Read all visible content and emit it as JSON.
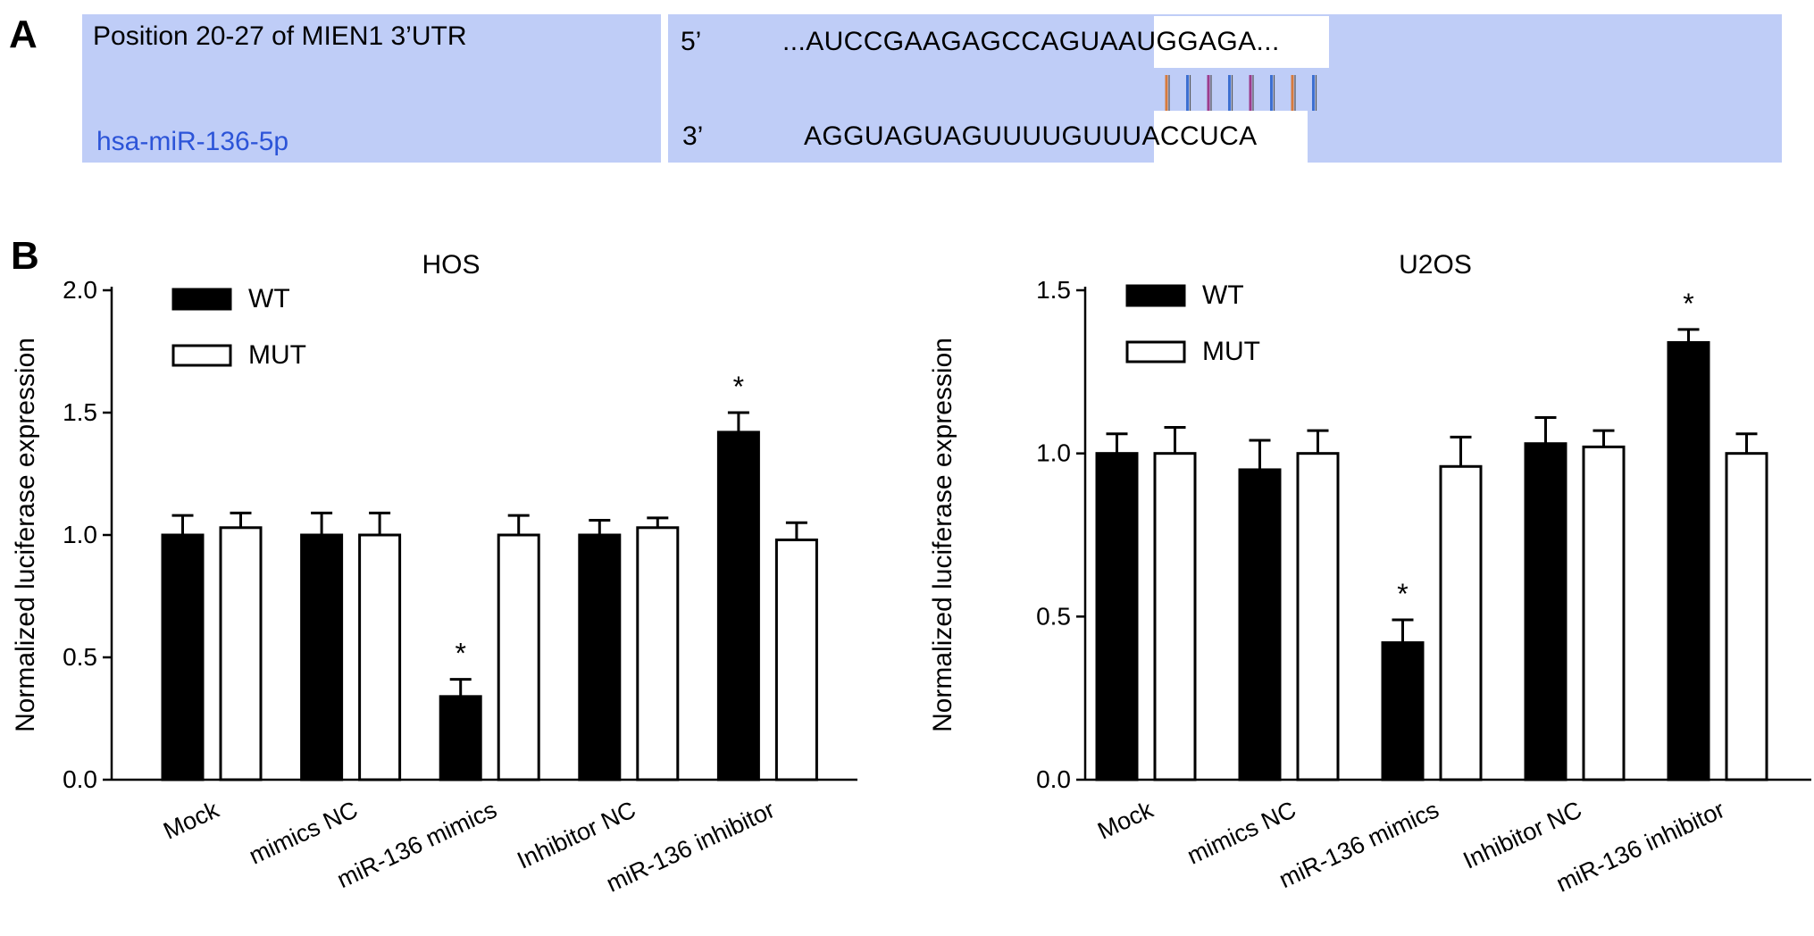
{
  "panel_a": {
    "letter": "A",
    "target_label": "Position 20-27 of MIEN1 3’UTR",
    "mirna_label": "hsa-miR-136-5p",
    "prime5": "5’",
    "prime3": "3’",
    "seq_top": "...AUCCGAAGAGCCAGUAAUGGAGA...",
    "seq_bottom": "AGGUAGUAGUUUUGUUUACCUCA",
    "pair_colors": [
      "#d77a3c",
      "#3c6fd1",
      "#9c3c8c",
      "#3c6fd1",
      "#9c3c8c",
      "#3c6fd1",
      "#d77a3c",
      "#3c6fd1"
    ]
  },
  "panel_b": {
    "letter": "B"
  },
  "chart_data": [
    {
      "type": "bar",
      "title": "HOS",
      "ylabel": "Normalized luciferase expression",
      "xlabel": "",
      "categories": [
        "Mock",
        "mimics NC",
        "miR-136 mimics",
        "Inhibitor NC",
        "miR-136 inhibitor"
      ],
      "ylim": [
        0,
        2.0
      ],
      "yticks": [
        "0.0",
        "0.5",
        "1.0",
        "1.5",
        "2.0"
      ],
      "series": [
        {
          "name": "WT",
          "fill": "#000000",
          "values": [
            1.0,
            1.0,
            0.34,
            1.0,
            1.42
          ],
          "errors": [
            0.08,
            0.09,
            0.07,
            0.06,
            0.08
          ]
        },
        {
          "name": "MUT",
          "fill": "#ffffff",
          "values": [
            1.03,
            1.0,
            1.0,
            1.03,
            0.98
          ],
          "errors": [
            0.06,
            0.09,
            0.08,
            0.04,
            0.07
          ]
        }
      ],
      "significance": [
        {
          "category": 2,
          "series": 0,
          "label": "*"
        },
        {
          "category": 4,
          "series": 0,
          "label": "*"
        }
      ],
      "legend": "top-left",
      "grid": false
    },
    {
      "type": "bar",
      "title": "U2OS",
      "ylabel": "Normalized luciferase expression",
      "xlabel": "",
      "categories": [
        "Mock",
        "mimics NC",
        "miR-136 mimics",
        "Inhibitor NC",
        "miR-136 inhibitor"
      ],
      "ylim": [
        0,
        1.5
      ],
      "yticks": [
        "0.0",
        "0.5",
        "1.0",
        "1.5"
      ],
      "series": [
        {
          "name": "WT",
          "fill": "#000000",
          "values": [
            1.0,
            0.95,
            0.42,
            1.03,
            1.34
          ],
          "errors": [
            0.06,
            0.09,
            0.07,
            0.08,
            0.04
          ]
        },
        {
          "name": "MUT",
          "fill": "#ffffff",
          "values": [
            1.0,
            1.0,
            0.96,
            1.02,
            1.0
          ],
          "errors": [
            0.08,
            0.07,
            0.09,
            0.05,
            0.06
          ]
        }
      ],
      "significance": [
        {
          "category": 2,
          "series": 0,
          "label": "*"
        },
        {
          "category": 4,
          "series": 0,
          "label": "*"
        }
      ],
      "legend": "top-left",
      "grid": false
    }
  ]
}
